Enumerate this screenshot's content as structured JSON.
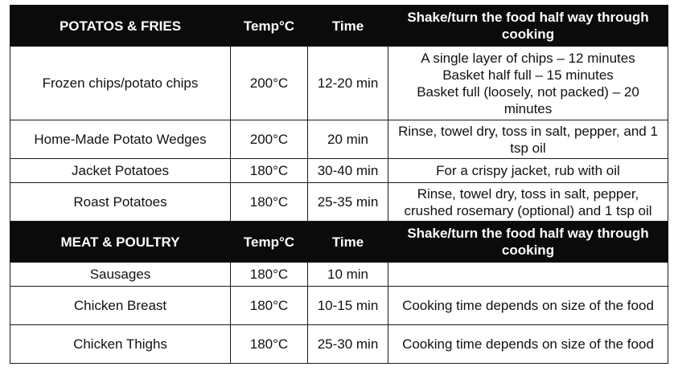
{
  "sections": [
    {
      "header": {
        "title": "POTATOS & FRIES",
        "temp": "Temp°C",
        "time": "Time",
        "note": "Shake/turn the food half way through cooking"
      },
      "rows": [
        {
          "food": "Frozen chips/potato chips",
          "temp": "200°C",
          "time": "12-20 min",
          "notes": [
            "A single layer of chips – 12 minutes",
            "Basket half full – 15 minutes",
            "Basket full (loosely, not packed) – 20 minutes"
          ]
        },
        {
          "food": "Home-Made Potato Wedges",
          "temp": "200°C",
          "time": "20 min",
          "notes": [
            "Rinse, towel dry, toss in salt, pepper, and 1 tsp oil"
          ]
        },
        {
          "food": "Jacket Potatoes",
          "temp": "180°C",
          "time": "30-40 min",
          "notes": [
            "For a crispy jacket, rub with oil"
          ]
        },
        {
          "food": "Roast Potatoes",
          "temp": "180°C",
          "time": "25-35 min",
          "notes": [
            "Rinse, towel dry, toss in salt, pepper, crushed rosemary (optional) and 1 tsp oil"
          ]
        }
      ]
    },
    {
      "header": {
        "title": "MEAT & POULTRY",
        "temp": "Temp°C",
        "time": "Time",
        "note": "Shake/turn the food half way through cooking"
      },
      "rows": [
        {
          "food": "Sausages",
          "temp": "180°C",
          "time": "10 min",
          "notes": [
            ""
          ]
        },
        {
          "food": "Chicken Breast",
          "temp": "180°C",
          "time": "10-15 min",
          "notes": [
            "Cooking time depends on size of the food"
          ]
        },
        {
          "food": "Chicken Thighs",
          "temp": "180°C",
          "time": "25-30 min",
          "notes": [
            "Cooking time depends on size of the food"
          ]
        }
      ]
    }
  ]
}
